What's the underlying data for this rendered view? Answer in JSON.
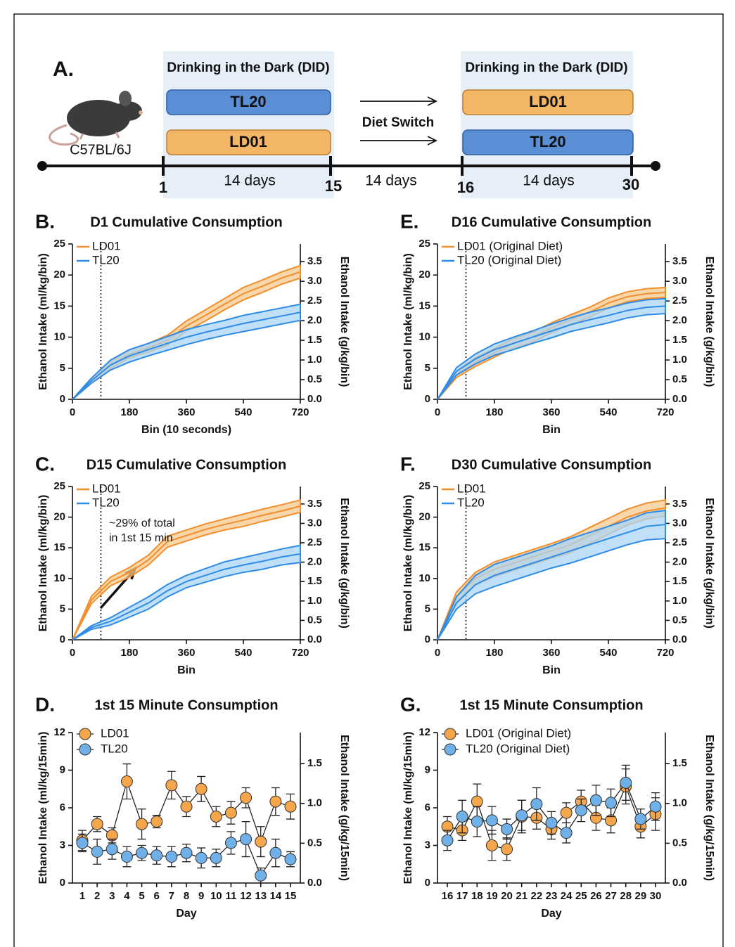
{
  "diagram": {
    "panel": "A.",
    "mouse_label": "C57BL/6J",
    "phase1": {
      "title": "Drinking in the Dark (DID)",
      "bars": [
        "TL20",
        "LD01"
      ],
      "duration": "14 days"
    },
    "switch": {
      "label": "Diet Switch",
      "duration": "14 days"
    },
    "phase2": {
      "title": "Drinking in the Dark (DID)",
      "bars": [
        "LD01",
        "TL20"
      ],
      "duration": "14 days"
    },
    "days": [
      "1",
      "15",
      "16",
      "30"
    ]
  },
  "chart_data": [
    {
      "type": "line",
      "panel": "B.",
      "title": "D1 Cumulative Consumption",
      "xlabel": "Bin (10 seconds)",
      "ylabel": "Ethanol Intake (ml/kg/bin)",
      "y2label": "Ethanol Intake (g/kg/bin)",
      "x": [
        0,
        60,
        120,
        180,
        240,
        300,
        360,
        420,
        480,
        540,
        600,
        660,
        720
      ],
      "xlim": [
        0,
        720
      ],
      "xticks": [
        0,
        180,
        360,
        540,
        720
      ],
      "ylim": [
        0,
        25
      ],
      "yticks": [
        0,
        5,
        10,
        15,
        20,
        25
      ],
      "y2lim": [
        0,
        3.95
      ],
      "y2ticks": [
        {
          "value": 0,
          "label": "0.0"
        },
        0.5,
        {
          "value": 1,
          "label": "1.0"
        },
        1.5,
        {
          "value": 2,
          "label": "2.0"
        },
        2.5,
        {
          "value": 3,
          "label": "3.0"
        },
        3.5
      ],
      "vline": 90,
      "series": [
        {
          "name": "LD01",
          "color": "#f28e2b",
          "band": "#f8c98e",
          "values": [
            0,
            3,
            5.5,
            7.3,
            8.3,
            9.5,
            11.8,
            13.5,
            15.3,
            17,
            18.2,
            19.5,
            20.5
          ],
          "sem": [
            0,
            0.4,
            0.6,
            0.6,
            0.7,
            0.8,
            0.8,
            0.9,
            0.9,
            1,
            1,
            1,
            1
          ]
        },
        {
          "name": "TL20",
          "color": "#2f8ce6",
          "band": "#a9d5f5",
          "values": [
            0,
            3,
            5.5,
            7,
            8,
            9,
            10,
            10.8,
            11.5,
            12.2,
            12.8,
            13.4,
            14
          ],
          "sem": [
            0,
            0.4,
            0.8,
            1,
            1,
            1.1,
            1.2,
            1.2,
            1.2,
            1.3,
            1.3,
            1.3,
            1.3
          ]
        }
      ]
    },
    {
      "type": "line",
      "panel": "C.",
      "title": "D15 Cumulative Consumption",
      "xlabel": "Bin",
      "ylabel": "Ethanol Intake (ml/kg/bin)",
      "y2label": "Ethanol Intake (g/kg/bin)",
      "annotation": [
        "~29% of total",
        "in 1st 15 min"
      ],
      "x": [
        0,
        60,
        120,
        180,
        240,
        300,
        360,
        420,
        480,
        540,
        600,
        660,
        720
      ],
      "xlim": [
        0,
        720
      ],
      "xticks": [
        0,
        180,
        360,
        540,
        720
      ],
      "ylim": [
        0,
        25
      ],
      "yticks": [
        0,
        5,
        10,
        15,
        20,
        25
      ],
      "y2lim": [
        0,
        3.95
      ],
      "y2ticks": [
        {
          "value": 0,
          "label": "0.0"
        },
        0.5,
        {
          "value": 1,
          "label": "1.0"
        },
        1.5,
        {
          "value": 2,
          "label": "2.0"
        },
        2.5,
        {
          "value": 3,
          "label": "3.0"
        },
        3.5
      ],
      "vline": 90,
      "series": [
        {
          "name": "LD01",
          "color": "#f28e2b",
          "band": "#f8c98e",
          "values": [
            0,
            6.5,
            9.5,
            11,
            13,
            16,
            17,
            18,
            18.8,
            19.5,
            20.3,
            21,
            21.8
          ],
          "sem": [
            0,
            0.6,
            0.7,
            0.8,
            0.8,
            0.9,
            0.9,
            0.9,
            0.9,
            1,
            1,
            1,
            1
          ]
        },
        {
          "name": "TL20",
          "color": "#2f8ce6",
          "band": "#a9d5f5",
          "values": [
            0,
            2,
            3,
            4.5,
            6,
            8,
            9.5,
            10.5,
            11.5,
            12.2,
            12.8,
            13.5,
            14
          ],
          "sem": [
            0,
            0.3,
            0.6,
            0.8,
            1,
            1,
            1,
            1.1,
            1.2,
            1.2,
            1.3,
            1.3,
            1.4
          ]
        }
      ]
    },
    {
      "type": "errorbar",
      "panel": "D.",
      "title": "1st 15 Minute Consumption",
      "xlabel": "Day",
      "ylabel": "Ethanol Intake (ml/kg/15min)",
      "y2label": "Ethanol Intake (g/kg/15min)",
      "categories": [
        "1",
        "2",
        "3",
        "4",
        "5",
        "6",
        "7",
        "8",
        "9",
        "10",
        "11",
        "12",
        "13",
        "14",
        "15"
      ],
      "ylim": [
        0,
        12
      ],
      "yticks": [
        0,
        3,
        6,
        9,
        12
      ],
      "y2lim": [
        0,
        1.89
      ],
      "y2ticks": [
        {
          "value": 0,
          "label": "0.0"
        },
        0.5,
        {
          "value": 1,
          "label": "1.0"
        },
        1.5
      ],
      "series": [
        {
          "name": "LD01",
          "color": "#f5a54a",
          "values": [
            3.4,
            4.7,
            3.8,
            8.1,
            4.7,
            4.9,
            7.8,
            6.1,
            7.5,
            5.3,
            5.6,
            6.8,
            3.3,
            6.5,
            6.1
          ],
          "errors": [
            0.8,
            0.6,
            0.6,
            1.4,
            1.2,
            0.5,
            1.1,
            0.8,
            1,
            0.8,
            0.9,
            0.8,
            1.2,
            1.1,
            1
          ]
        },
        {
          "name": "TL20",
          "color": "#6fb0e8",
          "values": [
            3.2,
            2.5,
            2.7,
            2.1,
            2.4,
            2.2,
            2.1,
            2.4,
            2,
            2,
            3.2,
            3.5,
            0.6,
            2.4,
            1.9
          ],
          "errors": [
            0.7,
            1,
            0.8,
            0.8,
            0.6,
            0.7,
            0.8,
            0.7,
            0.8,
            0.7,
            0.9,
            1.4,
            0.6,
            1.1,
            0.6
          ]
        }
      ]
    },
    {
      "type": "line",
      "panel": "E.",
      "title": "D16 Cumulative Consumption",
      "xlabel": "Bin",
      "ylabel": "Ethanol Intake (ml/kg/bin)",
      "y2label": "Ethanol Intake (g/kg/bin)",
      "x": [
        0,
        60,
        120,
        180,
        240,
        300,
        360,
        420,
        480,
        540,
        600,
        660,
        720
      ],
      "xlim": [
        0,
        720
      ],
      "xticks": [
        0,
        180,
        360,
        540,
        720
      ],
      "ylim": [
        0,
        25
      ],
      "yticks": [
        0,
        5,
        10,
        15,
        20,
        25
      ],
      "y2lim": [
        0,
        3.95
      ],
      "y2ticks": [
        {
          "value": 0,
          "label": "0.0"
        },
        0.5,
        {
          "value": 1,
          "label": "1.0"
        },
        1.5,
        {
          "value": 2,
          "label": "2.0"
        },
        2.5,
        {
          "value": 3,
          "label": "3.0"
        },
        3.5
      ],
      "vline": 90,
      "series": [
        {
          "name": "LD01 (Original Diet)",
          "color": "#f28e2b",
          "band": "#f8c98e",
          "values": [
            0,
            4,
            6,
            7.5,
            9,
            10,
            11.5,
            12.8,
            14,
            15.5,
            16.5,
            17,
            17.2
          ],
          "sem": [
            0,
            0.5,
            0.7,
            0.7,
            0.8,
            0.8,
            0.8,
            0.8,
            0.8,
            0.8,
            0.8,
            0.8,
            0.8
          ]
        },
        {
          "name": "TL20 (Original Diet)",
          "color": "#2f8ce6",
          "band": "#a9d5f5",
          "values": [
            0,
            4.5,
            6.5,
            8,
            9,
            10,
            11,
            12,
            12.8,
            13.5,
            14.3,
            14.8,
            15
          ],
          "sem": [
            0,
            0.6,
            0.8,
            0.9,
            1,
            1,
            1.1,
            1.1,
            1.2,
            1.2,
            1.2,
            1.2,
            1.2
          ]
        }
      ]
    },
    {
      "type": "line",
      "panel": "F.",
      "title": "D30 Cumulative Consumption",
      "xlabel": "Bin",
      "ylabel": "Ethanol Intake (ml/kg/bin)",
      "y2label": "Ethanol Intake (g/kg/bin)",
      "x": [
        0,
        60,
        120,
        180,
        240,
        300,
        360,
        420,
        480,
        540,
        600,
        660,
        720
      ],
      "xlim": [
        0,
        720
      ],
      "xticks": [
        0,
        180,
        360,
        540,
        720
      ],
      "ylim": [
        0,
        25
      ],
      "yticks": [
        0,
        5,
        10,
        15,
        20,
        25
      ],
      "y2lim": [
        0,
        3.95
      ],
      "y2ticks": [
        {
          "value": 0,
          "label": "0.0"
        },
        0.5,
        {
          "value": 1,
          "label": "1.0"
        },
        1.5,
        {
          "value": 2,
          "label": "2.0"
        },
        2.5,
        {
          "value": 3,
          "label": "3.0"
        },
        3.5
      ],
      "vline": 90,
      "series": [
        {
          "name": "LD01",
          "color": "#f28e2b",
          "band": "#f8c98e",
          "values": [
            0,
            7,
            10,
            11.5,
            12.5,
            13.5,
            14.5,
            15.5,
            17,
            18.5,
            20,
            21,
            21.5
          ],
          "sem": [
            0,
            0.8,
            1,
            1.2,
            1.2,
            1.2,
            1.2,
            1.3,
            1.3,
            1.3,
            1.3,
            1.3,
            1.3
          ]
        },
        {
          "name": "TL20",
          "color": "#2f8ce6",
          "band": "#a9d5f5",
          "values": [
            0,
            6,
            9,
            10.5,
            11.5,
            12.5,
            13.5,
            14.5,
            15.5,
            16.5,
            17.5,
            18.5,
            18.8
          ],
          "sem": [
            0,
            1,
            1.5,
            1.8,
            1.8,
            1.8,
            1.8,
            2,
            2,
            2,
            2,
            2.2,
            2.3
          ]
        }
      ]
    },
    {
      "type": "errorbar",
      "panel": "G.",
      "title": "1st 15 Minute Consumption",
      "xlabel": "Day",
      "ylabel": "Ethanol Intake (ml/kg/15min)",
      "y2label": "Ethanol Intake (g/kg/15min)",
      "categories": [
        "16",
        "17",
        "18",
        "19",
        "20",
        "21",
        "22",
        "23",
        "24",
        "25",
        "26",
        "27",
        "28",
        "29",
        "30"
      ],
      "ylim": [
        0,
        12
      ],
      "yticks": [
        0,
        3,
        6,
        9,
        12
      ],
      "y2lim": [
        0,
        1.89
      ],
      "y2ticks": [
        {
          "value": 0,
          "label": "0.0"
        },
        0.5,
        {
          "value": 1,
          "label": "1.0"
        },
        1.5
      ],
      "series": [
        {
          "name": "LD01 (Original Diet)",
          "color": "#f5a54a",
          "values": [
            4.5,
            4.2,
            6.5,
            3,
            2.7,
            5.3,
            5.2,
            4.3,
            5.6,
            6.5,
            5.2,
            5,
            7.7,
            4.5,
            5.5
          ],
          "errors": [
            0.8,
            0.8,
            1.4,
            1.2,
            0.9,
            1.3,
            0.9,
            0.8,
            0.8,
            0.9,
            1,
            1,
            1.4,
            0.9,
            1.3
          ]
        },
        {
          "name": "TL20 (Original Diet)",
          "color": "#6fb0e8",
          "values": [
            3.4,
            5.3,
            4.9,
            5,
            4.3,
            5.4,
            6.3,
            4.8,
            4,
            5.8,
            6.6,
            6.4,
            8,
            5.1,
            6.1
          ],
          "errors": [
            0.8,
            1.3,
            1.2,
            1.1,
            0.8,
            1.2,
            1.3,
            0.9,
            0.8,
            0.9,
            1.2,
            1.1,
            1.4,
            0.8,
            1.1
          ]
        }
      ]
    }
  ]
}
